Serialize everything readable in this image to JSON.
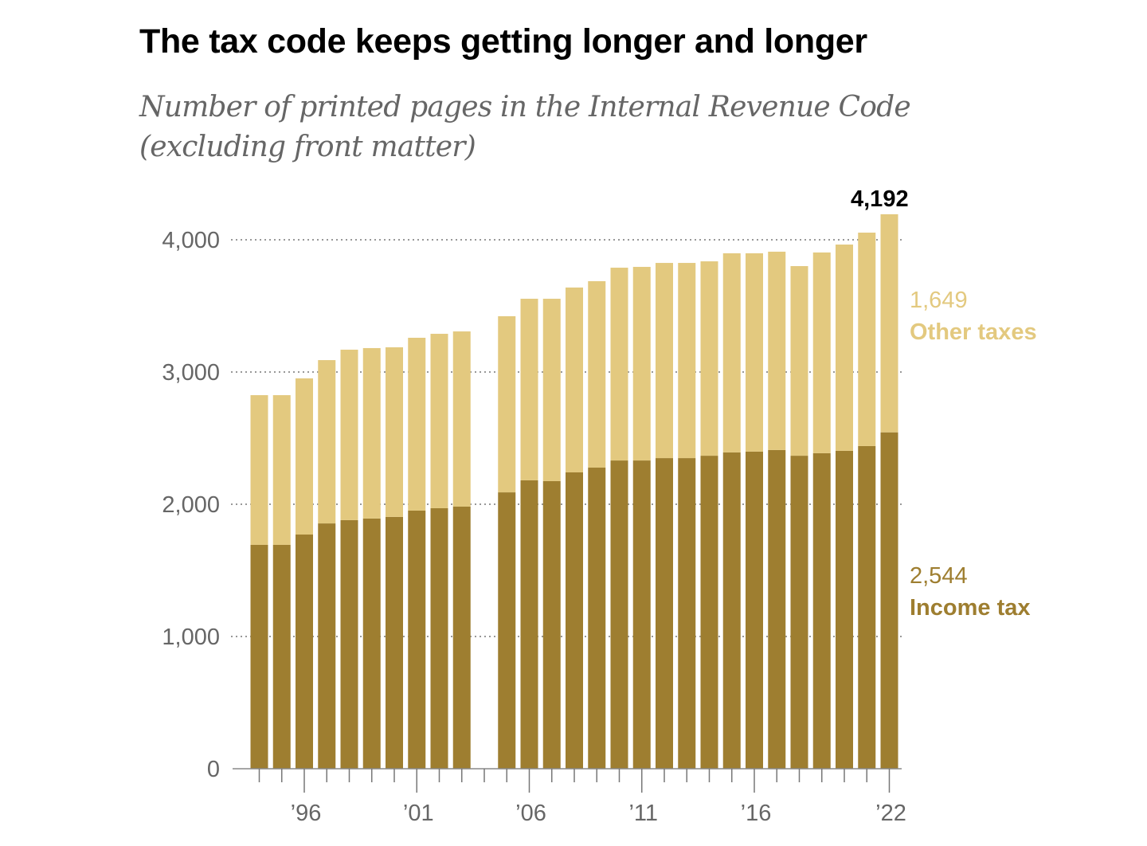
{
  "chart_data": {
    "type": "bar",
    "stacked": true,
    "title": "The tax code keeps getting longer and longer",
    "subtitle": "Number of printed pages in the Internal Revenue Code (excluding front matter)",
    "xlabel": "",
    "ylabel": "",
    "ylim": [
      0,
      4200
    ],
    "yticks": [
      0,
      1000,
      2000,
      3000,
      4000
    ],
    "ytick_labels": [
      "0",
      "1,000",
      "2,000",
      "3,000",
      "4,000"
    ],
    "grid": "horizontal dotted",
    "categories": [
      1994,
      1995,
      1996,
      1997,
      1998,
      1999,
      2000,
      2001,
      2002,
      2003,
      2004,
      2005,
      2006,
      2007,
      2008,
      2009,
      2010,
      2011,
      2012,
      2013,
      2014,
      2015,
      2016,
      2017,
      2018,
      2019,
      2020,
      2021,
      2022
    ],
    "xtick_labels": [
      {
        "year": 1996,
        "label": "’96"
      },
      {
        "year": 2001,
        "label": "’01"
      },
      {
        "year": 2006,
        "label": "’06"
      },
      {
        "year": 2011,
        "label": "’11"
      },
      {
        "year": 2016,
        "label": "’16"
      },
      {
        "year": 2022,
        "label": "’22"
      }
    ],
    "series": [
      {
        "name": "Income tax",
        "color": "#9e7e30",
        "values": [
          1693,
          1693,
          1771,
          1855,
          1880,
          1892,
          1904,
          1952,
          1970,
          1982,
          null,
          2090,
          2181,
          2175,
          2241,
          2277,
          2331,
          2331,
          2349,
          2349,
          2367,
          2392,
          2398,
          2410,
          2367,
          2386,
          2404,
          2440,
          2544
        ]
      },
      {
        "name": "Other taxes",
        "color": "#e3c97f",
        "values": [
          1132,
          1132,
          1181,
          1235,
          1289,
          1289,
          1283,
          1307,
          1319,
          1325,
          null,
          1332,
          1373,
          1379,
          1398,
          1410,
          1458,
          1464,
          1476,
          1476,
          1470,
          1506,
          1500,
          1500,
          1434,
          1518,
          1560,
          1614,
          1649
        ]
      }
    ],
    "annotations": {
      "total_label": "4,192",
      "other_value": "1,649",
      "other_name": "Other taxes",
      "income_value": "2,544",
      "income_name": "Income tax"
    }
  }
}
